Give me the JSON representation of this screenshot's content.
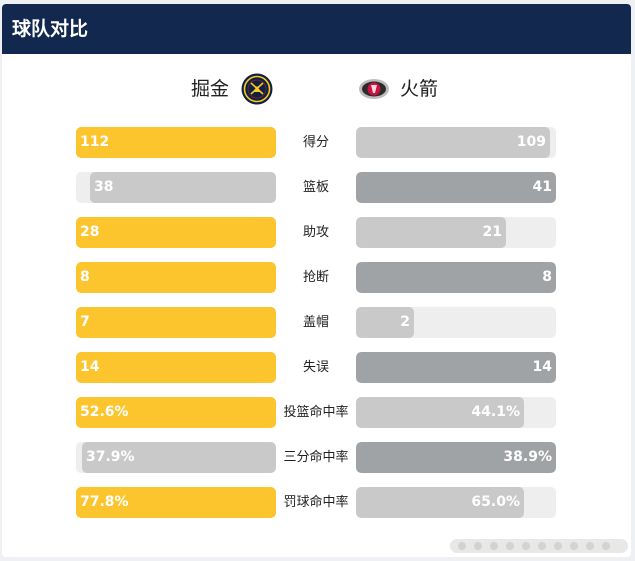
{
  "header": {
    "title": "球队对比"
  },
  "teams": {
    "left": {
      "name": "掘金",
      "logo": "nuggets-logo-icon"
    },
    "right": {
      "name": "火箭",
      "logo": "rockets-logo-icon"
    }
  },
  "colors": {
    "left_leading": "#fcc52d",
    "left_trailing": "#c9c9c9",
    "right_leading": "#a0a3a5",
    "right_trailing": "#c9c9c9",
    "track": "#eeeeee",
    "header_bg": "#13284f"
  },
  "stats": [
    {
      "label": "得分",
      "left": "112",
      "right": "109",
      "left_pct": 100,
      "right_pct": 97,
      "leader": "left"
    },
    {
      "label": "篮板",
      "left": "38",
      "right": "41",
      "left_pct": 93,
      "right_pct": 100,
      "leader": "right"
    },
    {
      "label": "助攻",
      "left": "28",
      "right": "21",
      "left_pct": 100,
      "right_pct": 75,
      "leader": "left"
    },
    {
      "label": "抢断",
      "left": "8",
      "right": "8",
      "left_pct": 100,
      "right_pct": 100,
      "leader": "both"
    },
    {
      "label": "盖帽",
      "left": "7",
      "right": "2",
      "left_pct": 100,
      "right_pct": 29,
      "leader": "left"
    },
    {
      "label": "失误",
      "left": "14",
      "right": "14",
      "left_pct": 100,
      "right_pct": 100,
      "leader": "both"
    },
    {
      "label": "投篮命中率",
      "left": "52.6%",
      "right": "44.1%",
      "left_pct": 100,
      "right_pct": 84,
      "leader": "left"
    },
    {
      "label": "三分命中率",
      "left": "37.9%",
      "right": "38.9%",
      "left_pct": 97,
      "right_pct": 100,
      "leader": "right"
    },
    {
      "label": "罚球命中率",
      "left": "77.8%",
      "right": "65.0%",
      "left_pct": 100,
      "right_pct": 84,
      "leader": "left"
    }
  ]
}
